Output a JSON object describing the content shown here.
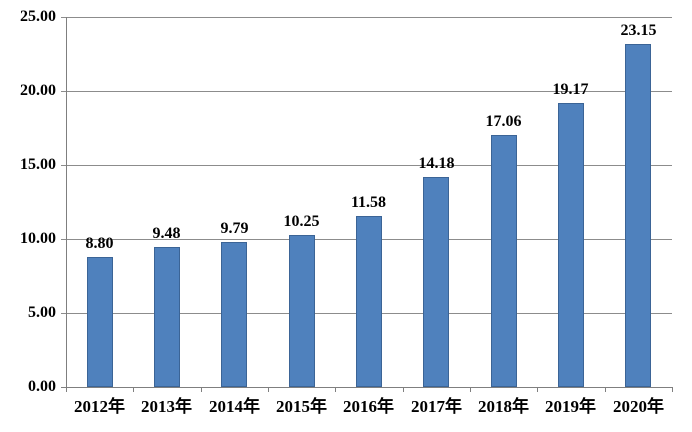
{
  "chart_data": {
    "type": "bar",
    "title": "",
    "xlabel": "",
    "ylabel": "",
    "categories": [
      "2012年",
      "2013年",
      "2014年",
      "2015年",
      "2016年",
      "2017年",
      "2018年",
      "2019年",
      "2020年"
    ],
    "values": [
      8.8,
      9.48,
      9.79,
      10.25,
      11.58,
      14.18,
      17.06,
      19.17,
      23.15
    ],
    "value_labels": [
      "8.80",
      "9.48",
      "9.79",
      "10.25",
      "11.58",
      "14.18",
      "17.06",
      "19.17",
      "23.15"
    ],
    "ylim": [
      0,
      25
    ],
    "ytick_step": 5,
    "ytick_labels": [
      "0.00",
      "5.00",
      "10.00",
      "15.00",
      "20.00",
      "25.00"
    ],
    "grid": true,
    "legend": false,
    "colors": {
      "bar_fill": "#4F81BD",
      "bar_border": "#3B6496",
      "gridline": "#8C8C8C",
      "axis": "#7F7F7F",
      "label_text": "#000000",
      "background": "#FFFFFF"
    }
  }
}
